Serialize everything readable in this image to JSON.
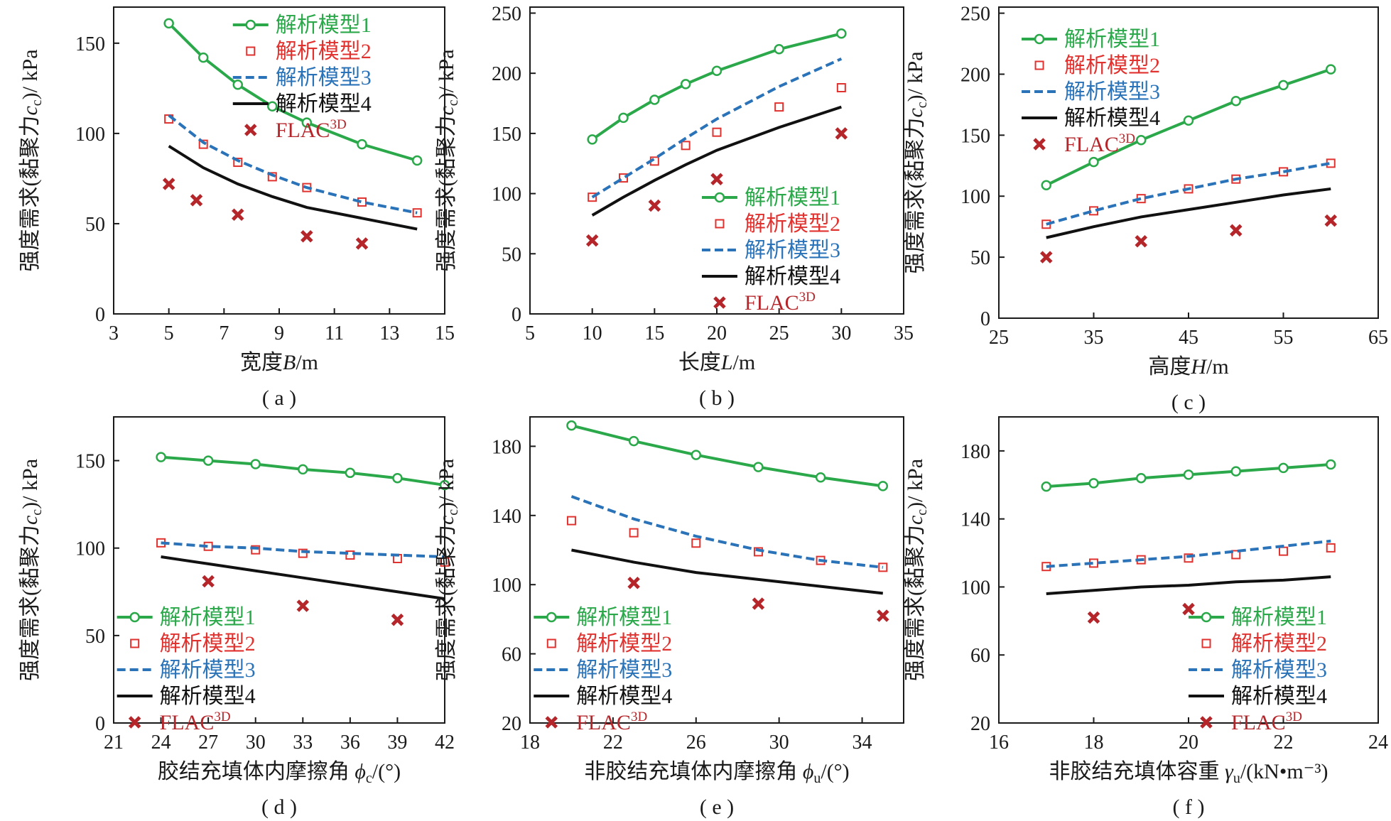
{
  "colors": {
    "model1": "#2aa84a",
    "model2": "#e0322f",
    "model3": "#2a73b8",
    "model4": "#111111",
    "flac": "#b5262b",
    "axis": "#1a1a1a"
  },
  "legend": {
    "model1": "解析模型1",
    "model2": "解析模型2",
    "model3": "解析模型3",
    "model4": "解析模型4",
    "flac_base": "FLAC",
    "flac_sup": "3D"
  },
  "chart_data": [
    {
      "id": "a",
      "type": "line",
      "caption": "( a )",
      "xlabel_main": "宽度",
      "xlabel_var": "B",
      "xlabel_sub": "",
      "xlabel_unit": "/m",
      "xlim": [
        3,
        15
      ],
      "xticks": [
        3,
        5,
        7,
        9,
        11,
        13,
        15
      ],
      "ylim": [
        0,
        170
      ],
      "yticks": [
        0,
        50,
        100,
        150
      ],
      "ylabel_pre": "强度需求(黏聚力",
      "ylabel_var": "c",
      "ylabel_sub": "c",
      "ylabel_post": ")/ kPa",
      "legend_position": "top-right",
      "series": [
        {
          "key": "model1",
          "x": [
            5,
            6.25,
            7.5,
            8.75,
            10,
            12,
            14
          ],
          "y": [
            161,
            142,
            127,
            115,
            106,
            94,
            85
          ]
        },
        {
          "key": "model2",
          "x": [
            5,
            6.25,
            7.5,
            8.75,
            10,
            12,
            14
          ],
          "y": [
            108,
            94,
            84,
            76,
            70,
            62,
            56
          ]
        },
        {
          "key": "model3",
          "x": [
            5,
            6.25,
            7.5,
            8.75,
            10,
            12,
            14
          ],
          "y": [
            110,
            95,
            85,
            77,
            70,
            62,
            56
          ]
        },
        {
          "key": "model4",
          "x": [
            5,
            6.25,
            7.5,
            8.75,
            10,
            12,
            14
          ],
          "y": [
            93,
            81,
            72,
            65,
            59,
            53,
            47
          ]
        },
        {
          "key": "flac",
          "x": [
            5,
            6,
            7.5,
            10,
            12
          ],
          "y": [
            72,
            63,
            55,
            43,
            39
          ]
        }
      ]
    },
    {
      "id": "b",
      "type": "line",
      "caption": "( b )",
      "xlabel_main": "长度",
      "xlabel_var": "L",
      "xlabel_sub": "",
      "xlabel_unit": "/m",
      "xlim": [
        5,
        35
      ],
      "xticks": [
        5,
        10,
        15,
        20,
        25,
        30,
        35
      ],
      "ylim": [
        0,
        255
      ],
      "yticks": [
        0,
        50,
        100,
        150,
        200,
        250
      ],
      "ylabel_pre": "强度需求(黏聚力",
      "ylabel_var": "c",
      "ylabel_sub": "c",
      "ylabel_post": ")/ kPa",
      "legend_position": "right",
      "series": [
        {
          "key": "model1",
          "x": [
            10,
            12.5,
            15,
            17.5,
            20,
            25,
            30
          ],
          "y": [
            145,
            163,
            178,
            191,
            202,
            220,
            233
          ]
        },
        {
          "key": "model2",
          "x": [
            10,
            12.5,
            15,
            17.5,
            20,
            25,
            30
          ],
          "y": [
            97,
            113,
            127,
            140,
            151,
            172,
            188
          ]
        },
        {
          "key": "model3",
          "x": [
            10,
            12.5,
            15,
            17.5,
            20,
            25,
            30
          ],
          "y": [
            97,
            113,
            129,
            146,
            162,
            189,
            212
          ]
        },
        {
          "key": "model4",
          "x": [
            10,
            12.5,
            15,
            17.5,
            20,
            25,
            30
          ],
          "y": [
            82,
            97,
            111,
            124,
            136,
            155,
            172
          ]
        },
        {
          "key": "flac",
          "x": [
            10,
            15,
            20,
            30
          ],
          "y": [
            61,
            90,
            112,
            150
          ]
        }
      ]
    },
    {
      "id": "c",
      "type": "line",
      "caption": "( c )",
      "xlabel_main": "高度",
      "xlabel_var": "H",
      "xlabel_sub": "",
      "xlabel_unit": "/m",
      "xlim": [
        25,
        65
      ],
      "xticks": [
        25,
        35,
        45,
        55,
        65
      ],
      "ylim": [
        0,
        255
      ],
      "yticks": [
        0,
        50,
        100,
        150,
        200,
        250
      ],
      "ylabel_pre": "强度需求(黏聚力",
      "ylabel_var": "c",
      "ylabel_sub": "c",
      "ylabel_post": ")/ kPa",
      "legend_position": "top-left",
      "series": [
        {
          "key": "model1",
          "x": [
            30,
            35,
            40,
            45,
            50,
            55,
            60
          ],
          "y": [
            109,
            128,
            146,
            162,
            178,
            191,
            204
          ]
        },
        {
          "key": "model2",
          "x": [
            30,
            35,
            40,
            45,
            50,
            55,
            60
          ],
          "y": [
            77,
            88,
            98,
            106,
            114,
            120,
            127
          ]
        },
        {
          "key": "model3",
          "x": [
            30,
            35,
            40,
            45,
            50,
            55,
            60
          ],
          "y": [
            77,
            88,
            98,
            106,
            114,
            120,
            127
          ]
        },
        {
          "key": "model4",
          "x": [
            30,
            35,
            40,
            45,
            50,
            55,
            60
          ],
          "y": [
            66,
            75,
            83,
            89,
            95,
            101,
            106
          ]
        },
        {
          "key": "flac",
          "x": [
            30,
            40,
            50,
            60
          ],
          "y": [
            50,
            63,
            72,
            80
          ]
        }
      ]
    },
    {
      "id": "d",
      "type": "line",
      "caption": "( d )",
      "xlabel_main": "胶结充填体内摩擦角 ",
      "xlabel_var": "ϕ",
      "xlabel_sub": "c",
      "xlabel_unit": "/(°)",
      "xlim": [
        21,
        42
      ],
      "xticks": [
        21,
        24,
        27,
        30,
        33,
        36,
        39,
        42
      ],
      "ylim": [
        0,
        175
      ],
      "yticks": [
        0,
        50,
        100,
        150
      ],
      "ylabel_pre": "强度需求(黏聚力",
      "ylabel_var": "c",
      "ylabel_sub": "c",
      "ylabel_post": ")/ kPa",
      "legend_position": "bottom-left",
      "series": [
        {
          "key": "model1",
          "x": [
            24,
            27,
            30,
            33,
            36,
            39,
            42
          ],
          "y": [
            152,
            150,
            148,
            145,
            143,
            140,
            136
          ]
        },
        {
          "key": "model2",
          "x": [
            24,
            27,
            30,
            33,
            36,
            39,
            42
          ],
          "y": [
            103,
            101,
            99,
            97,
            96,
            94,
            92
          ]
        },
        {
          "key": "model3",
          "x": [
            24,
            27,
            30,
            33,
            36,
            39,
            42
          ],
          "y": [
            103,
            101,
            100,
            98,
            97,
            96,
            95
          ]
        },
        {
          "key": "model4",
          "x": [
            24,
            27,
            30,
            33,
            36,
            39,
            42
          ],
          "y": [
            95,
            91,
            87,
            83,
            79,
            75,
            71
          ]
        },
        {
          "key": "flac",
          "x": [
            27,
            33,
            39
          ],
          "y": [
            81,
            67,
            59
          ]
        }
      ]
    },
    {
      "id": "e",
      "type": "line",
      "caption": "( e )",
      "xlabel_main": "非胶结充填体内摩擦角 ",
      "xlabel_var": "ϕ",
      "xlabel_sub": "u",
      "xlabel_unit": "/(°)",
      "xlim": [
        18,
        36
      ],
      "xticks": [
        18,
        22,
        26,
        30,
        34
      ],
      "ylim": [
        20,
        197
      ],
      "yticks": [
        20,
        60,
        100,
        140,
        180
      ],
      "ylabel_pre": "强度需求(黏聚力",
      "ylabel_var": "c",
      "ylabel_sub": "c",
      "ylabel_post": ")/ kPa",
      "legend_position": "bottom-left",
      "series": [
        {
          "key": "model1",
          "x": [
            20,
            23,
            26,
            29,
            32,
            35
          ],
          "y": [
            192,
            183,
            175,
            168,
            162,
            157
          ]
        },
        {
          "key": "model2",
          "x": [
            20,
            23,
            26,
            29,
            32,
            35
          ],
          "y": [
            137,
            130,
            124,
            119,
            114,
            110
          ]
        },
        {
          "key": "model3",
          "x": [
            20,
            23,
            26,
            29,
            32,
            35
          ],
          "y": [
            151,
            138,
            128,
            120,
            114,
            110
          ]
        },
        {
          "key": "model4",
          "x": [
            20,
            23,
            26,
            29,
            32,
            35
          ],
          "y": [
            120,
            113,
            107,
            103,
            99,
            95
          ]
        },
        {
          "key": "flac",
          "x": [
            23,
            29,
            35
          ],
          "y": [
            101,
            89,
            82
          ]
        }
      ]
    },
    {
      "id": "f",
      "type": "line",
      "caption": "( f )",
      "xlabel_main": "非胶结充填体容重 ",
      "xlabel_var": "γ",
      "xlabel_sub": "u",
      "xlabel_unit": "/(kN•m⁻³)",
      "xlim": [
        16,
        24
      ],
      "xticks": [
        16,
        18,
        20,
        22,
        24
      ],
      "ylim": [
        20,
        200
      ],
      "yticks": [
        20,
        60,
        100,
        140,
        180
      ],
      "ylabel_pre": "强度需求(黏聚力",
      "ylabel_var": "c",
      "ylabel_sub": "c",
      "ylabel_post": ")/ kPa",
      "legend_position": "bottom-right",
      "series": [
        {
          "key": "model1",
          "x": [
            17,
            18,
            19,
            20,
            21,
            22,
            23
          ],
          "y": [
            159,
            161,
            164,
            166,
            168,
            170,
            172
          ]
        },
        {
          "key": "model2",
          "x": [
            17,
            18,
            19,
            20,
            21,
            22,
            23
          ],
          "y": [
            112,
            114,
            116,
            117,
            119,
            121,
            123
          ]
        },
        {
          "key": "model3",
          "x": [
            17,
            18,
            19,
            20,
            21,
            22,
            23
          ],
          "y": [
            112,
            114,
            116,
            118,
            121,
            124,
            127
          ]
        },
        {
          "key": "model4",
          "x": [
            17,
            18,
            19,
            20,
            21,
            22,
            23
          ],
          "y": [
            96,
            98,
            100,
            101,
            103,
            104,
            106
          ]
        },
        {
          "key": "flac",
          "x": [
            18,
            20
          ],
          "y": [
            82,
            87
          ]
        }
      ]
    }
  ]
}
